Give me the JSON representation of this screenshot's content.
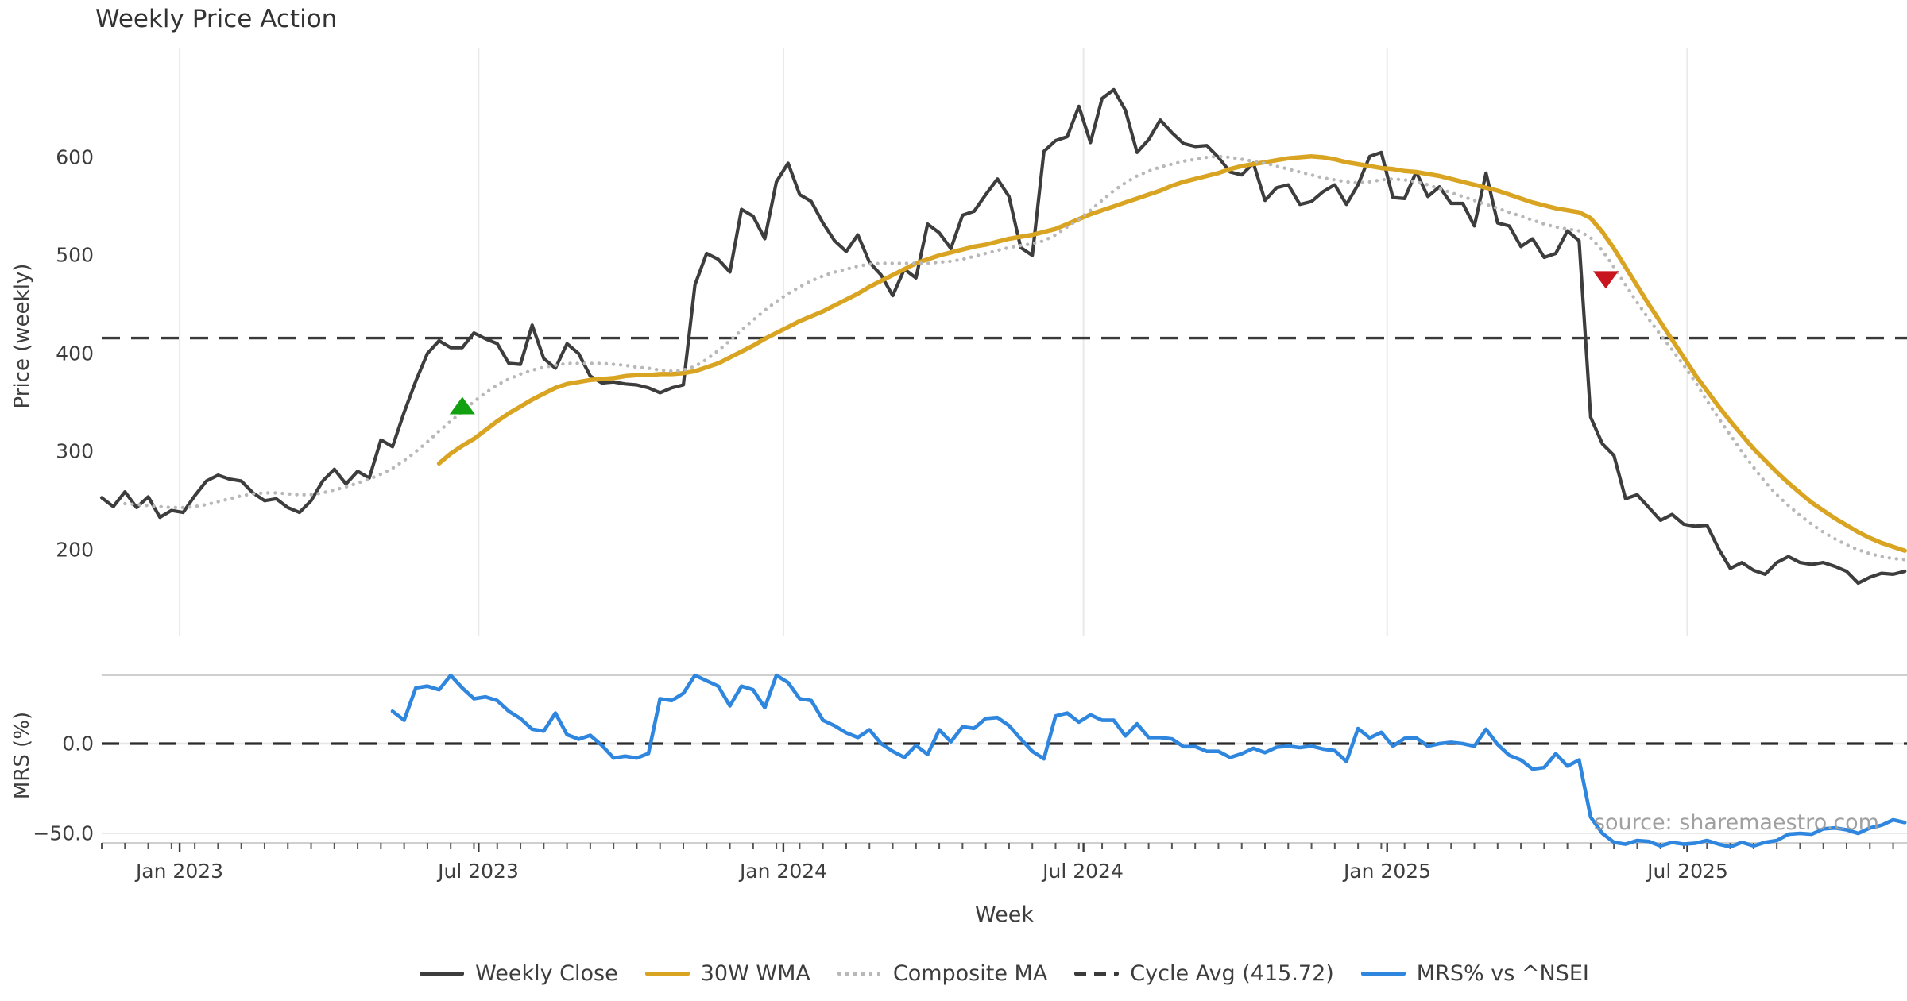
{
  "title": "Weekly Price Action",
  "source": "source: sharemaestro.com",
  "colors": {
    "background": "#ffffff",
    "grid": "#e9e9e9",
    "spine": "#cfcfcf",
    "zero_underlay": "#e6e6e6",
    "text": "#3d3d3d",
    "source_text": "#a0a0a0",
    "weekly_close": "#3d3d3d",
    "wma_30w": "#d9a421",
    "composite_ma": "#b8b8b8",
    "cycle_avg": "#3a3a3a",
    "mrs": "#2e86de",
    "buy_marker": "#10a010",
    "sell_marker": "#c9151e"
  },
  "legend": [
    {
      "label": "Weekly Close",
      "color": "#3d3d3d",
      "style": "solid"
    },
    {
      "label": "30W WMA",
      "color": "#d9a421",
      "style": "solid"
    },
    {
      "label": "Composite MA",
      "color": "#b8b8b8",
      "style": "dotted"
    },
    {
      "label": "Cycle Avg (415.72)",
      "color": "#3a3a3a",
      "style": "dashed"
    },
    {
      "label": "MRS% vs ^NSEI",
      "color": "#2e86de",
      "style": "solid"
    }
  ],
  "chart_data": {
    "type": "line",
    "title": "Weekly Price Action",
    "x_unit": "week",
    "x_axis": {
      "label": "Week",
      "ticks": [
        {
          "label": "Jan 2023",
          "week": 6.7
        },
        {
          "label": "Jul 2023",
          "week": 32.4
        },
        {
          "label": "Jan 2024",
          "week": 58.6
        },
        {
          "label": "Jul 2024",
          "week": 84.4
        },
        {
          "label": "Jan 2025",
          "week": 110.5
        },
        {
          "label": "Jul 2025",
          "week": 136.3
        }
      ]
    },
    "panels": [
      {
        "name": "price",
        "ylabel": "Price (weekly)",
        "ylim": [
          110,
          710
        ],
        "yticks": [
          600,
          500,
          400,
          300,
          200
        ],
        "ytick_labels": [
          "600",
          "500",
          "400",
          "300",
          "200"
        ],
        "grid": "vertical-only",
        "series": [
          {
            "name": "Weekly Close",
            "color": "#3d3d3d",
            "style": "solid",
            "start_week": 0,
            "values": [
              253,
              244,
              259,
              243,
              254,
              233,
              240,
              238,
              255,
              270,
              276,
              272,
              270,
              258,
              250,
              252,
              243,
              238,
              250,
              270,
              282,
              267,
              280,
              273,
              312,
              305,
              340,
              372,
              400,
              413,
              406,
              406,
              421,
              415,
              410,
              390,
              389,
              429,
              395,
              385,
              410,
              400,
              377,
              370,
              371,
              369,
              368,
              365,
              360,
              365,
              368,
              470,
              502,
              496,
              483,
              547,
              540,
              517,
              575,
              594,
              562,
              555,
              533,
              515,
              504,
              521,
              493,
              480,
              459,
              486,
              477,
              532,
              523,
              507,
              541,
              545,
              562,
              578,
              560,
              508,
              500,
              606,
              617,
              621,
              652,
              615,
              660,
              669,
              648,
              605,
              618,
              638,
              625,
              614,
              611,
              612,
              600,
              585,
              582,
              594,
              556,
              569,
              572,
              552,
              555,
              565,
              572,
              552,
              572,
              601,
              605,
              559,
              558,
              585,
              560,
              570,
              553,
              553,
              530,
              584,
              533,
              530,
              509,
              517,
              498,
              502,
              525,
              515,
              335,
              308,
              296,
              252,
              256,
              243,
              230,
              236,
              226,
              224,
              225,
              201,
              181,
              187,
              179,
              175,
              187,
              193,
              187,
              185,
              187,
              183,
              178,
              166,
              172,
              176,
              175,
              178
            ]
          },
          {
            "name": "30W WMA",
            "color": "#d9a421",
            "style": "solid",
            "start_week": 29,
            "values": [
              288,
              298,
              306,
              313,
              322,
              331,
              339,
              346,
              353,
              359,
              365,
              369,
              371,
              373,
              374,
              375,
              377,
              378,
              378,
              379,
              379,
              380,
              382,
              386,
              390,
              396,
              402,
              408,
              415,
              421,
              427,
              433,
              438,
              443,
              449,
              455,
              461,
              468,
              474,
              480,
              486,
              492,
              496,
              500,
              503,
              506,
              509,
              511,
              514,
              517,
              519,
              521,
              524,
              527,
              532,
              537,
              542,
              546,
              550,
              554,
              558,
              562,
              566,
              571,
              575,
              578,
              581,
              584,
              588,
              591,
              593,
              595,
              597,
              599,
              600,
              601,
              600,
              598,
              595,
              593,
              591,
              589,
              588,
              586,
              585,
              583,
              581,
              578,
              575,
              572,
              569,
              566,
              562,
              558,
              554,
              551,
              548,
              546,
              544,
              538,
              524,
              507,
              488,
              469,
              450,
              432,
              414,
              396,
              378,
              362,
              346,
              331,
              317,
              303,
              291,
              279,
              268,
              258,
              248,
              240,
              232,
              225,
              218,
              212,
              207,
              203,
              199
            ]
          },
          {
            "name": "Composite MA",
            "color": "#b8b8b8",
            "style": "dotted",
            "start_week": 2,
            "values": [
              247,
              246,
              245,
              244,
              243,
              243,
              244,
              246,
              249,
              252,
              255,
              257,
              258,
              258,
              257,
              256,
              256,
              258,
              261,
              264,
              268,
              272,
              277,
              283,
              291,
              300,
              310,
              321,
              331,
              341,
              351,
              360,
              368,
              374,
              379,
              383,
              386,
              388,
              390,
              390,
              390,
              390,
              389,
              388,
              386,
              385,
              383,
              382,
              383,
              387,
              394,
              403,
              413,
              424,
              434,
              444,
              453,
              461,
              468,
              474,
              479,
              483,
              486,
              489,
              491,
              492,
              492,
              492,
              492,
              492,
              493,
              494,
              496,
              499,
              502,
              505,
              508,
              510,
              512,
              515,
              521,
              529,
              537,
              546,
              556,
              566,
              574,
              581,
              586,
              590,
              593,
              596,
              598,
              600,
              601,
              600,
              598,
              596,
              594,
              591,
              588,
              585,
              582,
              579,
              577,
              575,
              574,
              575,
              577,
              578,
              577,
              575,
              572,
              568,
              564,
              560,
              556,
              552,
              548,
              544,
              540,
              536,
              532,
              529,
              527,
              525,
              518,
              505,
              488,
              470,
              452,
              435,
              419,
              404,
              388,
              371,
              352,
              334,
              317,
              300,
              284,
              269,
              256,
              245,
              235,
              226,
              218,
              211,
              205,
              200,
              196,
              193,
              191,
              190
            ]
          },
          {
            "name": "Cycle Avg",
            "color": "#3a3a3a",
            "style": "dashed",
            "value": 415.72
          }
        ],
        "markers": [
          {
            "name": "buy-signal",
            "shape": "triangle-up",
            "color": "#10a010",
            "week": 31,
            "price": 347
          },
          {
            "name": "sell-signal",
            "shape": "triangle-down",
            "color": "#c9151e",
            "week": 129.3,
            "price": 475
          }
        ]
      },
      {
        "name": "mrs",
        "ylabel": "MRS (%)",
        "ylim": [
          -62,
          38
        ],
        "yticks": [
          0,
          -50
        ],
        "ytick_labels": [
          "0.0",
          "−50.0"
        ],
        "series": [
          {
            "name": "MRS% vs ^NSEI",
            "color": "#2e86de",
            "style": "solid",
            "start_week": 25,
            "values": [
              18,
              13,
              31,
              32,
              30,
              38,
              31,
              25,
              26,
              24,
              18,
              14,
              8,
              7,
              17,
              5,
              2.5,
              4.6,
              -1,
              -8,
              -7,
              -8,
              -5.5,
              25,
              24,
              28,
              38,
              35,
              32,
              21,
              32,
              30,
              20,
              38,
              34,
              25,
              24,
              13,
              10,
              6,
              3.4,
              7.7,
              0,
              -4.3,
              -7.7,
              -1,
              -6,
              7.7,
              1,
              9.4,
              8.5,
              14,
              14.5,
              10,
              2.6,
              -4.3,
              -8.5,
              15.4,
              17,
              12,
              16,
              13,
              13,
              4.3,
              11,
              3.4,
              3.4,
              2.6,
              -1.7,
              -1.7,
              -4.3,
              -4.3,
              -7.7,
              -5.6,
              -2.6,
              -5,
              -2,
              -1.4,
              -2.2,
              -1.4,
              -3,
              -3.9,
              -10,
              8.4,
              3.2,
              6.3,
              -1.4,
              2.9,
              3.2,
              -1.4,
              0,
              0.7,
              0,
              -1.4,
              8,
              -0.5,
              -6.5,
              -9.1,
              -14.2,
              -13.3,
              -5.6,
              -12.5,
              -9.1,
              -41,
              -50,
              -55,
              -56,
              -54,
              -54.5,
              -57,
              -55,
              -56,
              -55.5,
              -54,
              -56,
              -57.5,
              -55,
              -57,
              -55,
              -54,
              -50.5,
              -50,
              -50.5,
              -47.5,
              -47,
              -48,
              -50,
              -47,
              -45.5,
              -42.5,
              -44
            ]
          },
          {
            "name": "Zero Line",
            "color": "#2b2b2b",
            "style": "dashed",
            "value": 0
          }
        ]
      }
    ]
  }
}
